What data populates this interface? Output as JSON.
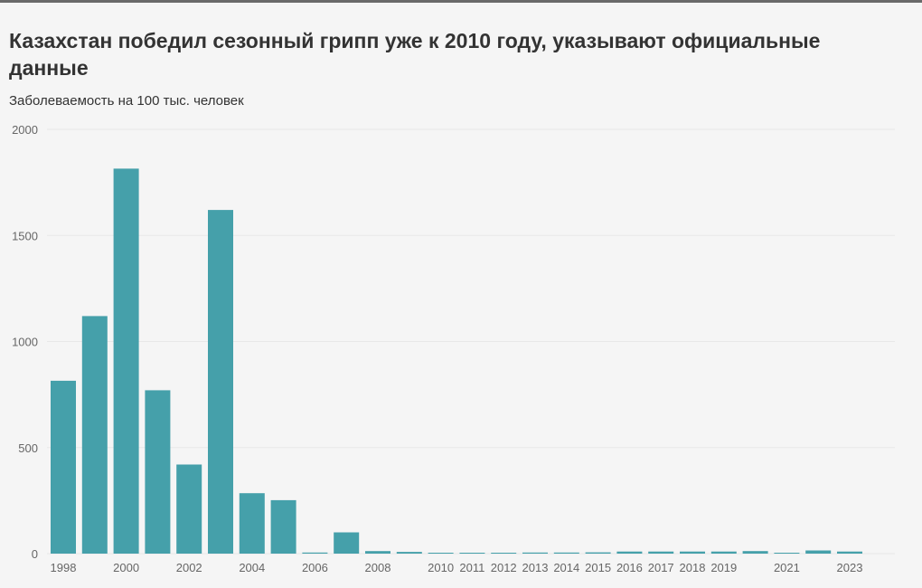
{
  "title": "Казахстан победил сезонный грипп уже к 2010 году, указывают официальные данные",
  "subtitle": "Заболеваемость на 100 тыс. человек",
  "colors": {
    "bar": "#45a0aa",
    "background": "#f5f5f5",
    "grid": "#e8e8e8"
  },
  "chart_data": {
    "type": "bar",
    "title": "Казахстан победил сезонный грипп уже к 2010 году, указывают официальные данные",
    "ylabel": "Заболеваемость на 100 тыс. человек",
    "xlabel": "",
    "ylim": [
      0,
      2000
    ],
    "yticks": [
      0,
      500,
      1000,
      1500,
      2000
    ],
    "grid": true,
    "categories": [
      "1998",
      "1999",
      "2000",
      "2001",
      "2002",
      "2003",
      "2004",
      "2005",
      "2006",
      "2007",
      "2008",
      "2009",
      "2010",
      "2011",
      "2012",
      "2013",
      "2014",
      "2015",
      "2016",
      "2017",
      "2018",
      "2019",
      "2020",
      "2021",
      "2022",
      "2023"
    ],
    "xtick_labels": [
      "1998",
      "",
      "2000",
      "",
      "2002",
      "",
      "2004",
      "",
      "2006",
      "",
      "2008",
      "",
      "2010",
      "2011",
      "2012",
      "2013",
      "2014",
      "2015",
      "2016",
      "2017",
      "2018",
      "2019",
      "",
      "2021",
      "",
      "2023"
    ],
    "values": [
      815,
      1120,
      1815,
      770,
      420,
      1620,
      285,
      252,
      5,
      100,
      12,
      8,
      3,
      4,
      4,
      5,
      5,
      6,
      10,
      10,
      10,
      10,
      12,
      4,
      15,
      10
    ]
  }
}
